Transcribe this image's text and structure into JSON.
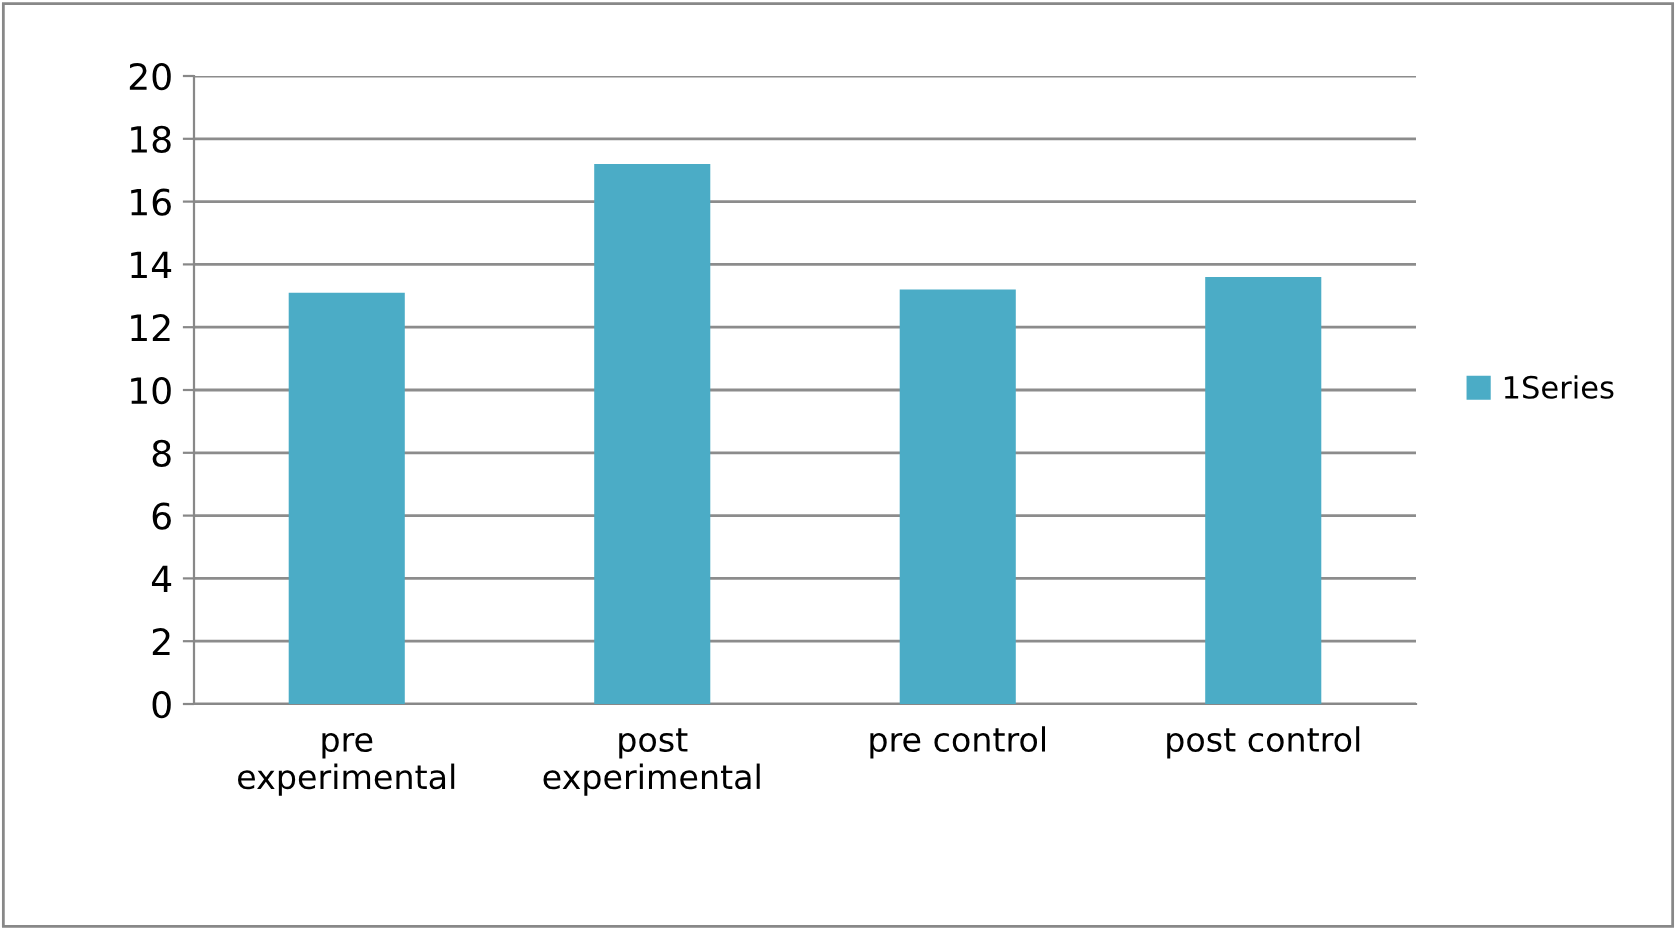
{
  "chart_data": {
    "type": "bar",
    "categories": [
      "pre\nexperimental",
      "post\nexperimental",
      "pre control",
      "post control"
    ],
    "series": [
      {
        "name": "1Series",
        "color": "#4bacc6",
        "values": [
          13.1,
          17.2,
          13.2,
          13.6
        ]
      }
    ],
    "ylim": [
      0,
      20
    ],
    "yticks": [
      0,
      2,
      4,
      6,
      8,
      10,
      12,
      14,
      16,
      18,
      20
    ],
    "grid": "y",
    "legend": "right"
  }
}
